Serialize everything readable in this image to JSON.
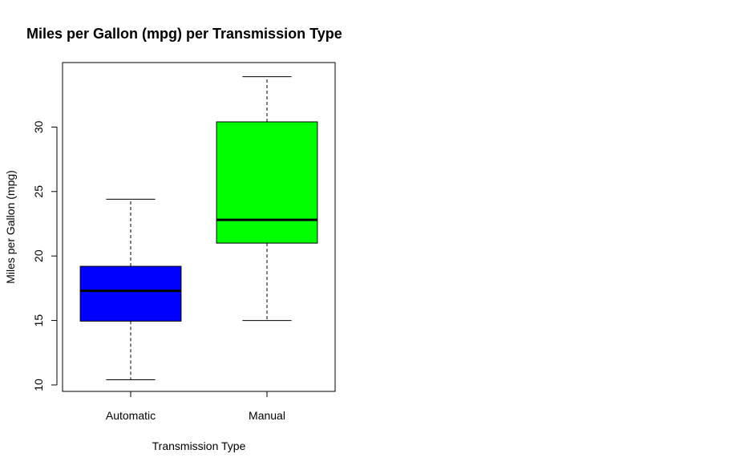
{
  "chart_data": {
    "type": "boxplot",
    "title": "Miles per Gallon (mpg) per Transmission Type",
    "xlabel": "Transmission Type",
    "ylabel": "Miles per Gallon (mpg)",
    "ylim": [
      9.5,
      35
    ],
    "yticks": [
      10,
      15,
      20,
      25,
      30
    ],
    "grid": false,
    "categories": [
      "Automatic",
      "Manual"
    ],
    "boxes": [
      {
        "category": "Automatic",
        "min": 10.4,
        "q1": 14.95,
        "median": 17.3,
        "q3": 19.2,
        "max": 24.4,
        "color": "#0000FF"
      },
      {
        "category": "Manual",
        "min": 15.0,
        "q1": 21.0,
        "median": 22.8,
        "q3": 30.4,
        "max": 33.9,
        "color": "#00FF00"
      }
    ]
  }
}
